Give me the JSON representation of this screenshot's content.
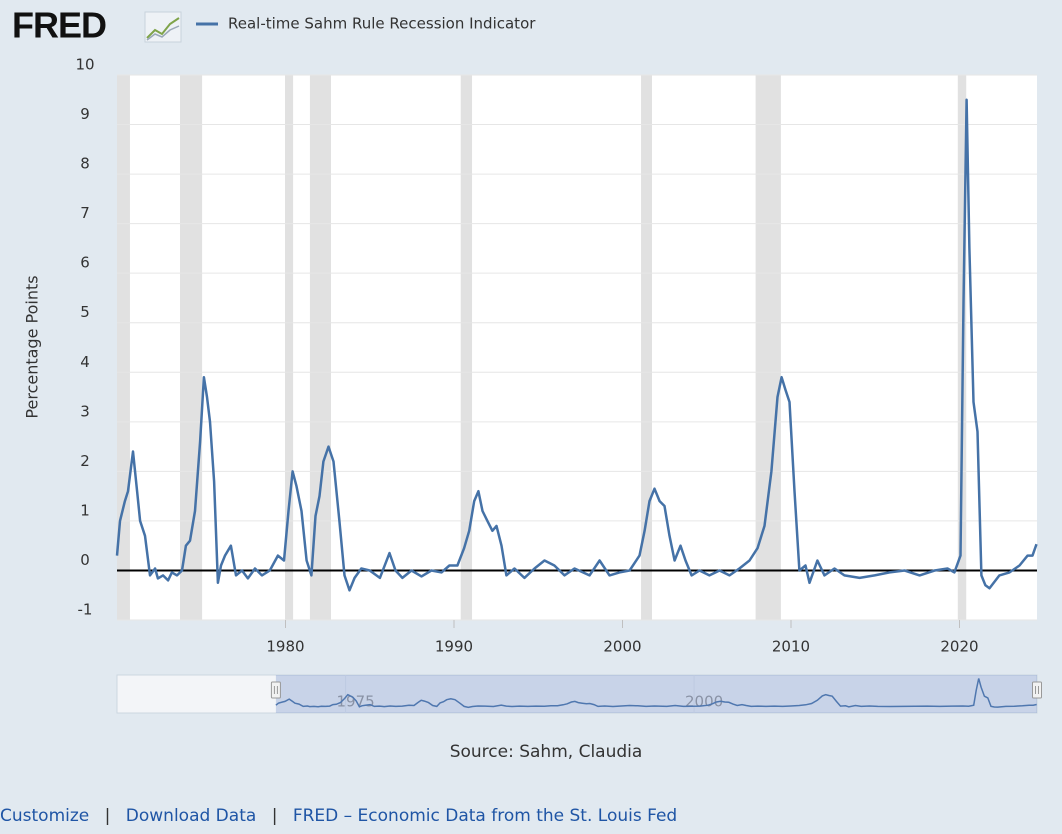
{
  "logo": "FRED",
  "chart_data": {
    "type": "line",
    "ylabel": "Percentage Points",
    "source": "Source: Sahm, Claudia",
    "x": [
      1970.0,
      1970.18,
      1970.47,
      1970.65,
      1970.95,
      1971.19,
      1971.37,
      1971.66,
      1971.96,
      1972.26,
      1972.43,
      1972.73,
      1973.03,
      1973.26,
      1973.56,
      1973.86,
      1974.09,
      1974.33,
      1974.63,
      1974.93,
      1975.16,
      1975.34,
      1975.52,
      1975.76,
      1975.99,
      1976.17,
      1976.41,
      1976.76,
      1977.06,
      1977.42,
      1977.77,
      1978.19,
      1978.6,
      1979.07,
      1979.55,
      1979.91,
      1980.18,
      1980.42,
      1980.65,
      1980.95,
      1981.25,
      1981.54,
      1981.78,
      1982.02,
      1982.25,
      1982.55,
      1982.85,
      1983.2,
      1983.5,
      1983.8,
      1984.1,
      1984.5,
      1985.0,
      1985.6,
      1986.17,
      1986.53,
      1986.94,
      1987.48,
      1988.07,
      1988.66,
      1989.26,
      1989.73,
      1990.2,
      1990.6,
      1990.9,
      1991.2,
      1991.45,
      1991.69,
      1991.98,
      1992.28,
      1992.52,
      1992.82,
      1993.11,
      1993.59,
      1994.18,
      1994.78,
      1995.37,
      1995.96,
      1996.56,
      1997.15,
      1998.04,
      1998.64,
      1999.23,
      1999.82,
      2000.42,
      2001.01,
      2001.31,
      2001.6,
      2001.9,
      2002.2,
      2002.49,
      2002.79,
      2003.09,
      2003.44,
      2003.74,
      2004.1,
      2004.57,
      2005.16,
      2005.76,
      2006.35,
      2006.94,
      2007.54,
      2008.01,
      2008.43,
      2008.84,
      2009.2,
      2009.44,
      2009.67,
      2009.91,
      2010.21,
      2010.5,
      2010.86,
      2011.1,
      2011.57,
      2011.99,
      2012.58,
      2013.17,
      2014.07,
      2014.96,
      2015.85,
      2016.74,
      2017.63,
      2018.52,
      2019.29,
      2019.7,
      2020.06,
      2020.24,
      2020.42,
      2020.59,
      2020.83,
      2021.07,
      2021.3,
      2021.54,
      2021.78,
      2022.37,
      2022.97,
      2023.56,
      2024.04,
      2024.33,
      2024.57
    ],
    "series": [
      {
        "name": "Real-time Sahm Rule Recession Indicator",
        "color": "#4572a7",
        "values": [
          0.3,
          1.0,
          1.4,
          1.6,
          2.4,
          1.6,
          1.0,
          0.7,
          -0.1,
          0.04,
          -0.16,
          -0.1,
          -0.2,
          -0.04,
          -0.1,
          0,
          0.5,
          0.6,
          1.2,
          2.6,
          3.9,
          3.5,
          3.0,
          1.8,
          -0.25,
          0.1,
          0.3,
          0.5,
          -0.1,
          0,
          -0.16,
          0.04,
          -0.1,
          0,
          0.3,
          0.2,
          1.2,
          2.0,
          1.7,
          1.2,
          0.2,
          -0.1,
          1.1,
          1.5,
          2.2,
          2.5,
          2.2,
          1.0,
          -0.1,
          -0.4,
          -0.15,
          0.04,
          0,
          -0.15,
          0.35,
          0,
          -0.15,
          0,
          -0.12,
          0,
          -0.04,
          0.1,
          0.1,
          0.45,
          0.8,
          1.4,
          1.6,
          1.2,
          1.0,
          0.8,
          0.9,
          0.5,
          -0.1,
          0.04,
          -0.15,
          0.04,
          0.2,
          0.1,
          -0.1,
          0.04,
          -0.1,
          0.2,
          -0.1,
          -0.04,
          0,
          0.3,
          0.8,
          1.4,
          1.65,
          1.4,
          1.3,
          0.7,
          0.2,
          0.5,
          0.2,
          -0.1,
          0,
          -0.1,
          0,
          -0.1,
          0.04,
          0.2,
          0.45,
          0.9,
          2.0,
          3.5,
          3.9,
          3.65,
          3.4,
          1.6,
          0,
          0.1,
          -0.25,
          0.2,
          -0.1,
          0.04,
          -0.1,
          -0.15,
          -0.1,
          -0.04,
          0,
          -0.1,
          0,
          0.04,
          -0.04,
          0.3,
          5.4,
          9.5,
          6.5,
          3.4,
          2.8,
          -0.1,
          -0.3,
          -0.36,
          -0.1,
          -0.04,
          0.1,
          0.3,
          0.3,
          0.53
        ]
      }
    ],
    "xlim": [
      1970,
      2024.6
    ],
    "ylim": [
      -1,
      10
    ],
    "xticks": [
      1980,
      1990,
      2000,
      2010,
      2020
    ],
    "yticks": [
      -1,
      0,
      1,
      2,
      3,
      4,
      5,
      6,
      7,
      8,
      9,
      10
    ],
    "grid": true,
    "reference_line": {
      "value": 0,
      "color": "#000000"
    },
    "shaded_periods": [
      [
        1970.0,
        1970.77
      ],
      [
        1973.74,
        1975.05
      ],
      [
        1979.97,
        1980.45
      ],
      [
        1981.45,
        1982.7
      ],
      [
        1990.4,
        1991.07
      ],
      [
        2001.1,
        2001.75
      ],
      [
        2007.9,
        2009.4
      ],
      [
        2019.9,
        2020.4
      ]
    ],
    "navigator": {
      "xlim": [
        1958.6,
        2024.6
      ],
      "xticks": [
        1975,
        2000
      ]
    }
  },
  "footer": {
    "links": [
      "Customize",
      "Download Data",
      "FRED – Economic Data from the St. Louis Fed"
    ],
    "separator": "|"
  }
}
